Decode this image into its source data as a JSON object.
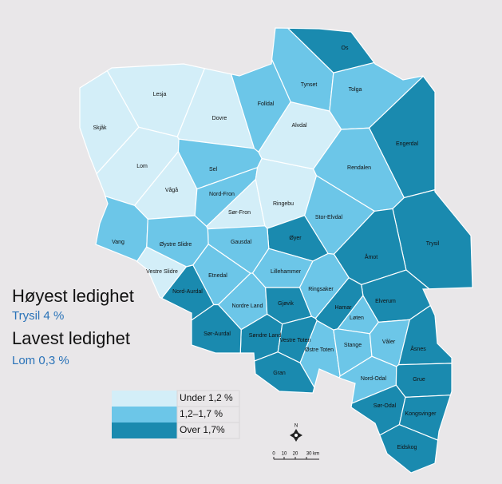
{
  "headings": [
    {
      "title": "Høyest ledighet",
      "detail": "Trysil 4 %"
    },
    {
      "title": "Lavest ledighet",
      "detail": "Lom 0,3 %"
    }
  ],
  "legend": [
    {
      "label": "Under 1,2 %",
      "color": "#d3eef8"
    },
    {
      "label": "1,2–1,7 %",
      "color": "#6cc6e8"
    },
    {
      "label": "Over 1,7%",
      "color": "#1a8aaf"
    }
  ],
  "regions": [
    {
      "name": "Lesja",
      "color": "#d3eef8"
    },
    {
      "name": "Skjåk",
      "color": "#d3eef8"
    },
    {
      "name": "Dovre",
      "color": "#d3eef8"
    },
    {
      "name": "Lom",
      "color": "#d3eef8"
    },
    {
      "name": "Vågå",
      "color": "#d3eef8"
    },
    {
      "name": "Sel",
      "color": "#6cc6e8"
    },
    {
      "name": "Nord-Fron",
      "color": "#6cc6e8"
    },
    {
      "name": "Sør-Fron",
      "color": "#d3eef8"
    },
    {
      "name": "Ringebu",
      "color": "#d3eef8"
    },
    {
      "name": "Folldal",
      "color": "#6cc6e8"
    },
    {
      "name": "Alvdal",
      "color": "#d3eef8"
    },
    {
      "name": "Tynset",
      "color": "#6cc6e8"
    },
    {
      "name": "Os",
      "color": "#1a8aaf"
    },
    {
      "name": "Tolga",
      "color": "#6cc6e8"
    },
    {
      "name": "Engerdal",
      "color": "#1a8aaf"
    },
    {
      "name": "Rendalen",
      "color": "#6cc6e8"
    },
    {
      "name": "Stor-Elvdal",
      "color": "#6cc6e8"
    },
    {
      "name": "Trysil",
      "color": "#1a8aaf"
    },
    {
      "name": "Åmot",
      "color": "#1a8aaf"
    },
    {
      "name": "Elverum",
      "color": "#1a8aaf"
    },
    {
      "name": "Øyer",
      "color": "#1a8aaf"
    },
    {
      "name": "Gausdal",
      "color": "#6cc6e8"
    },
    {
      "name": "Vang",
      "color": "#6cc6e8"
    },
    {
      "name": "Øystre Slidre",
      "color": "#6cc6e8"
    },
    {
      "name": "Vestre Slidre",
      "color": "#d3eef8"
    },
    {
      "name": "Nord-Aurdal",
      "color": "#1a8aaf"
    },
    {
      "name": "Etnedal",
      "color": "#6cc6e8"
    },
    {
      "name": "Nordre Land",
      "color": "#6cc6e8"
    },
    {
      "name": "Lillehammer",
      "color": "#6cc6e8"
    },
    {
      "name": "Ringsaker",
      "color": "#6cc6e8"
    },
    {
      "name": "Hamar",
      "color": "#1a8aaf"
    },
    {
      "name": "Løten",
      "color": "#6cc6e8"
    },
    {
      "name": "Gjøvik",
      "color": "#1a8aaf"
    },
    {
      "name": "Søndre Land",
      "color": "#1a8aaf"
    },
    {
      "name": "Vestre Toten",
      "color": "#1a8aaf"
    },
    {
      "name": "Østre Toten",
      "color": "#6cc6e8"
    },
    {
      "name": "Stange",
      "color": "#6cc6e8"
    },
    {
      "name": "Våler",
      "color": "#6cc6e8"
    },
    {
      "name": "Åsnes",
      "color": "#1a8aaf"
    },
    {
      "name": "Sør-Aurdal",
      "color": "#1a8aaf"
    },
    {
      "name": "Gran",
      "color": "#1a8aaf"
    },
    {
      "name": "Nord-Odal",
      "color": "#6cc6e8"
    },
    {
      "name": "Grue",
      "color": "#1a8aaf"
    },
    {
      "name": "Sør-Odal",
      "color": "#1a8aaf"
    },
    {
      "name": "Kongsvinger",
      "color": "#1a8aaf"
    },
    {
      "name": "Eidskog",
      "color": "#1a8aaf"
    }
  ],
  "compass": "N",
  "scale": [
    "0",
    "10",
    "20",
    "30 km"
  ]
}
